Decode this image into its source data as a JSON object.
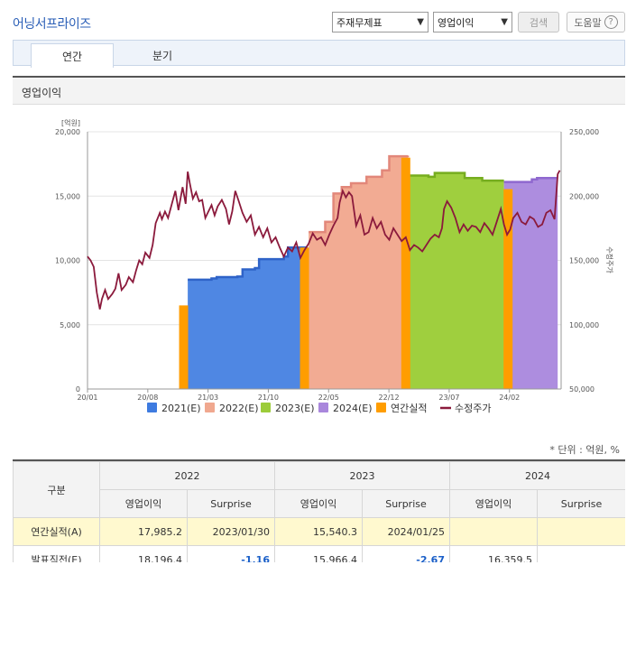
{
  "header": {
    "title": "어닝서프라이즈",
    "select_statement": "주재무제표",
    "select_metric": "영업이익",
    "search_button": "검색",
    "help_button": "도움말",
    "help_icon_glyph": "?"
  },
  "tabs": [
    {
      "label": "연간",
      "active": true
    },
    {
      "label": "분기",
      "active": false
    }
  ],
  "section_title": "영업이익",
  "chart_data": {
    "type": "bar+area+line",
    "ylabel_left_unit": "[억원]",
    "ylabel_right": "수정주가",
    "y_left_ticks": [
      "20,000",
      "15,000",
      "10,000",
      "5,000",
      "0"
    ],
    "y_right_ticks": [
      "250,000",
      "200,000",
      "150,000",
      "100,000",
      "50,000"
    ],
    "y_left_range": [
      0,
      20000
    ],
    "y_right_range": [
      50000,
      250000
    ],
    "x_ticks": [
      "20/01",
      "20/08",
      "21/03",
      "21/10",
      "22/05",
      "22/12",
      "23/07",
      "24/02"
    ],
    "x_range_months": [
      "2020-01",
      "2024-07"
    ],
    "legend": [
      {
        "name": "2021(E)",
        "color": "#3e7be0"
      },
      {
        "name": "2022(E)",
        "color": "#f0a88f"
      },
      {
        "name": "2023(E)",
        "color": "#9ccc3a"
      },
      {
        "name": "2024(E)",
        "color": "#a987dc"
      },
      {
        "name": "연간실적",
        "color": "#ff9d00"
      },
      {
        "name": "수정주가",
        "color": "#8b1a3c"
      }
    ],
    "estimate_series": [
      {
        "name": "2021(E)",
        "color": "#4f87e3",
        "stroke": "#2f63c8",
        "points": [
          [
            2020.97,
            8500
          ],
          [
            2021.2,
            8600
          ],
          [
            2021.25,
            8700
          ],
          [
            2021.45,
            8750
          ],
          [
            2021.5,
            9300
          ],
          [
            2021.62,
            9400
          ],
          [
            2021.66,
            10100
          ],
          [
            2021.9,
            10300
          ],
          [
            2021.94,
            11000
          ],
          [
            2022.12,
            11100
          ]
        ]
      },
      {
        "name": "2022(E)",
        "color": "#f2ab93",
        "stroke": "#e2877a",
        "points": [
          [
            2022.14,
            12200
          ],
          [
            2022.3,
            13000
          ],
          [
            2022.38,
            15200
          ],
          [
            2022.46,
            15700
          ],
          [
            2022.55,
            16000
          ],
          [
            2022.7,
            16500
          ],
          [
            2022.85,
            17000
          ],
          [
            2022.92,
            18100
          ],
          [
            2023.1,
            18150
          ]
        ]
      },
      {
        "name": "2023(E)",
        "color": "#9fcf3e",
        "stroke": "#76ad1f",
        "points": [
          [
            2023.12,
            16600
          ],
          [
            2023.3,
            16500
          ],
          [
            2023.36,
            16800
          ],
          [
            2023.6,
            16800
          ],
          [
            2023.65,
            16400
          ],
          [
            2023.8,
            16400
          ],
          [
            2023.82,
            16200
          ],
          [
            2024.03,
            16200
          ]
        ]
      },
      {
        "name": "2024(E)",
        "color": "#ad8ddf",
        "stroke": "#8f68cf",
        "points": [
          [
            2024.03,
            16100
          ],
          [
            2024.3,
            16300
          ],
          [
            2024.35,
            16400
          ],
          [
            2024.55,
            16400
          ]
        ]
      }
    ],
    "actual_bars": [
      {
        "x": 2020.93,
        "value": 6500
      },
      {
        "x": 2022.1,
        "value": 11000
      },
      {
        "x": 2023.08,
        "value": 17985.2
      },
      {
        "x": 2024.07,
        "value": 15540.3
      }
    ],
    "price_series": [
      [
        2020.0,
        153000
      ],
      [
        2020.03,
        150000
      ],
      [
        2020.06,
        145000
      ],
      [
        2020.09,
        125000
      ],
      [
        2020.12,
        112000
      ],
      [
        2020.14,
        120000
      ],
      [
        2020.17,
        127000
      ],
      [
        2020.2,
        120000
      ],
      [
        2020.24,
        124000
      ],
      [
        2020.27,
        128000
      ],
      [
        2020.3,
        140000
      ],
      [
        2020.33,
        127000
      ],
      [
        2020.37,
        131000
      ],
      [
        2020.4,
        137000
      ],
      [
        2020.44,
        133000
      ],
      [
        2020.47,
        142000
      ],
      [
        2020.5,
        150000
      ],
      [
        2020.53,
        147000
      ],
      [
        2020.56,
        156000
      ],
      [
        2020.6,
        152000
      ],
      [
        2020.63,
        162000
      ],
      [
        2020.66,
        179000
      ],
      [
        2020.7,
        187000
      ],
      [
        2020.72,
        182000
      ],
      [
        2020.75,
        188000
      ],
      [
        2020.78,
        183000
      ],
      [
        2020.82,
        195000
      ],
      [
        2020.85,
        204000
      ],
      [
        2020.88,
        189000
      ],
      [
        2020.92,
        207000
      ],
      [
        2020.95,
        194000
      ],
      [
        2020.97,
        219000
      ],
      [
        2020.99,
        210000
      ],
      [
        2021.02,
        198000
      ],
      [
        2021.05,
        203000
      ],
      [
        2021.08,
        196000
      ],
      [
        2021.11,
        197000
      ],
      [
        2021.14,
        183000
      ],
      [
        2021.17,
        188000
      ],
      [
        2021.2,
        193000
      ],
      [
        2021.23,
        185000
      ],
      [
        2021.26,
        192000
      ],
      [
        2021.3,
        197000
      ],
      [
        2021.34,
        190000
      ],
      [
        2021.37,
        178000
      ],
      [
        2021.4,
        188000
      ],
      [
        2021.43,
        204000
      ],
      [
        2021.46,
        197000
      ],
      [
        2021.5,
        187000
      ],
      [
        2021.54,
        180000
      ],
      [
        2021.58,
        185000
      ],
      [
        2021.62,
        170000
      ],
      [
        2021.66,
        176000
      ],
      [
        2021.7,
        168000
      ],
      [
        2021.74,
        175000
      ],
      [
        2021.78,
        164000
      ],
      [
        2021.82,
        168000
      ],
      [
        2021.86,
        160000
      ],
      [
        2021.9,
        153000
      ],
      [
        2021.94,
        160000
      ],
      [
        2021.98,
        157000
      ],
      [
        2022.02,
        164000
      ],
      [
        2022.06,
        152000
      ],
      [
        2022.1,
        158000
      ],
      [
        2022.14,
        163000
      ],
      [
        2022.18,
        171000
      ],
      [
        2022.22,
        166000
      ],
      [
        2022.26,
        168000
      ],
      [
        2022.3,
        162000
      ],
      [
        2022.34,
        170000
      ],
      [
        2022.38,
        177000
      ],
      [
        2022.42,
        183000
      ],
      [
        2022.44,
        195000
      ],
      [
        2022.47,
        204000
      ],
      [
        2022.5,
        199000
      ],
      [
        2022.53,
        203000
      ],
      [
        2022.56,
        200000
      ],
      [
        2022.6,
        177000
      ],
      [
        2022.64,
        185000
      ],
      [
        2022.68,
        170000
      ],
      [
        2022.72,
        172000
      ],
      [
        2022.76,
        183000
      ],
      [
        2022.8,
        175000
      ],
      [
        2022.84,
        180000
      ],
      [
        2022.88,
        170000
      ],
      [
        2022.92,
        166000
      ],
      [
        2022.96,
        175000
      ],
      [
        2023.0,
        170000
      ],
      [
        2023.04,
        165000
      ],
      [
        2023.08,
        168000
      ],
      [
        2023.12,
        158000
      ],
      [
        2023.16,
        162000
      ],
      [
        2023.2,
        160000
      ],
      [
        2023.24,
        157000
      ],
      [
        2023.28,
        162000
      ],
      [
        2023.32,
        167000
      ],
      [
        2023.36,
        170000
      ],
      [
        2023.4,
        168000
      ],
      [
        2023.43,
        175000
      ],
      [
        2023.45,
        190000
      ],
      [
        2023.48,
        196000
      ],
      [
        2023.52,
        191000
      ],
      [
        2023.56,
        183000
      ],
      [
        2023.6,
        172000
      ],
      [
        2023.64,
        178000
      ],
      [
        2023.68,
        173000
      ],
      [
        2023.72,
        177000
      ],
      [
        2023.76,
        176000
      ],
      [
        2023.8,
        172000
      ],
      [
        2023.84,
        179000
      ],
      [
        2023.88,
        175000
      ],
      [
        2023.92,
        170000
      ],
      [
        2023.96,
        180000
      ],
      [
        2024.0,
        190000
      ],
      [
        2024.03,
        178000
      ],
      [
        2024.06,
        170000
      ],
      [
        2024.09,
        174000
      ],
      [
        2024.12,
        183000
      ],
      [
        2024.16,
        187000
      ],
      [
        2024.2,
        180000
      ],
      [
        2024.24,
        178000
      ],
      [
        2024.28,
        184000
      ],
      [
        2024.32,
        182000
      ],
      [
        2024.36,
        176000
      ],
      [
        2024.4,
        178000
      ],
      [
        2024.44,
        187000
      ],
      [
        2024.48,
        189000
      ],
      [
        2024.52,
        182000
      ],
      [
        2024.55,
        217000
      ],
      [
        2024.57,
        220000
      ]
    ]
  },
  "unit_note": "* 단위 : 억원, %",
  "table": {
    "corner": "구분",
    "years": [
      "2022",
      "2023",
      "2024"
    ],
    "subheaders": [
      "영업이익",
      "Surprise"
    ],
    "rows": [
      {
        "label": "연간실적(A)",
        "cells": [
          "17,985.2",
          "2023/01/30",
          "15,540.3",
          "2024/01/25",
          "",
          ""
        ]
      },
      {
        "label": "발표직전(E)",
        "cells": [
          "18,196.4",
          "-1.16",
          "15,966.4",
          "-2.67",
          "16,359.5",
          ""
        ]
      }
    ]
  }
}
